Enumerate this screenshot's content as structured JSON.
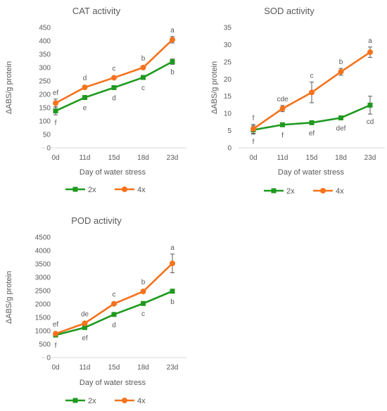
{
  "colors": {
    "series_2x": "#1f9a1f",
    "series_4x": "#f5721d",
    "axis": "#d9d9d9",
    "text": "#595959",
    "error_bar": "#595959"
  },
  "chart_data": [
    {
      "type": "line",
      "title": "CAT activity",
      "xlabel": "Day of water stress",
      "ylabel": "ΔABS/g protein",
      "categories": [
        "0d",
        "11d",
        "15d",
        "18d",
        "23d"
      ],
      "ylim": [
        0,
        450
      ],
      "yticks": [
        0,
        50,
        100,
        150,
        200,
        250,
        300,
        350,
        400,
        450
      ],
      "grid": false,
      "legend": "bottom",
      "series": [
        {
          "name": "2x",
          "marker": "square",
          "values": [
            138,
            188,
            225,
            263,
            322
          ],
          "errors": [
            15,
            6,
            5,
            6,
            10
          ],
          "letters": [
            "f",
            "e",
            "d",
            "c",
            "b"
          ]
        },
        {
          "name": "4x",
          "marker": "circle",
          "values": [
            167,
            226,
            262,
            300,
            404
          ],
          "errors": [
            15,
            5,
            5,
            5,
            12
          ],
          "letters": [
            "ef",
            "d",
            "c",
            "b",
            "a"
          ]
        }
      ]
    },
    {
      "type": "line",
      "title": "SOD activity",
      "xlabel": "Day of water stress",
      "ylabel": "ΔABS/g protein",
      "categories": [
        "0d",
        "11d",
        "15d",
        "18d",
        "23d"
      ],
      "ylim": [
        0,
        35
      ],
      "yticks": [
        0,
        5,
        10,
        15,
        20,
        25,
        30,
        35
      ],
      "grid": false,
      "legend": "bottom",
      "series": [
        {
          "name": "2x",
          "marker": "square",
          "values": [
            5.2,
            6.7,
            7.3,
            8.7,
            12.4
          ],
          "errors": [
            1.2,
            0.4,
            0.4,
            0.5,
            2.6
          ],
          "letters": [
            "f",
            "f",
            "ef",
            "def",
            "cd"
          ]
        },
        {
          "name": "4x",
          "marker": "circle",
          "values": [
            5.5,
            11.4,
            16.1,
            22.1,
            27.8
          ],
          "errors": [
            1.3,
            0.9,
            3.0,
            1.0,
            1.5
          ],
          "letters": [
            "f",
            "cde",
            "c",
            "b",
            "a"
          ]
        }
      ]
    },
    {
      "type": "line",
      "title": "POD activity",
      "xlabel": "Day of water stress",
      "ylabel": "ΔABS/g protein",
      "categories": [
        "0d",
        "11d",
        "15d",
        "18d",
        "23d"
      ],
      "ylim": [
        0,
        4500
      ],
      "yticks": [
        0,
        500,
        1000,
        1500,
        2000,
        2500,
        3000,
        3500,
        4000,
        4500
      ],
      "grid": false,
      "legend": "bottom",
      "series": [
        {
          "name": "2x",
          "marker": "square",
          "values": [
            840,
            1120,
            1610,
            2020,
            2480
          ],
          "errors": [
            40,
            40,
            50,
            50,
            60
          ],
          "letters": [
            "f",
            "ef",
            "d",
            "c",
            "b"
          ]
        },
        {
          "name": "4x",
          "marker": "circle",
          "values": [
            890,
            1280,
            2010,
            2470,
            3520
          ],
          "errors": [
            40,
            40,
            50,
            50,
            350
          ],
          "letters": [
            "ef",
            "de",
            "c",
            "b",
            "a"
          ]
        }
      ]
    }
  ]
}
